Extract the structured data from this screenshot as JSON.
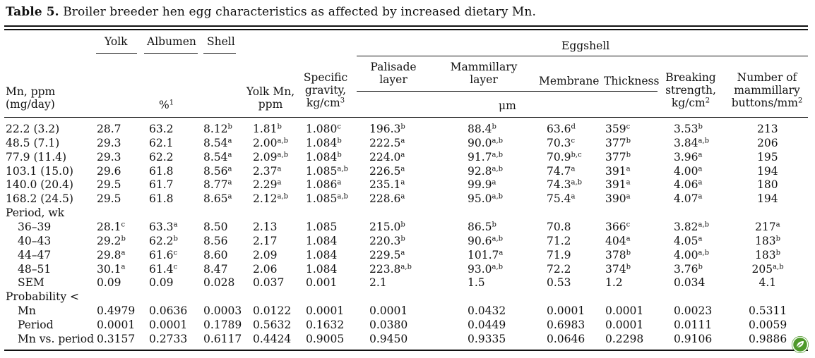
{
  "caption": {
    "label": "Table 5.",
    "text": "Broiler breeder hen egg characteristics as affected by increased dietary Mn."
  },
  "headers": {
    "yolk": "Yolk",
    "albumen": "Albumen",
    "shell": "Shell",
    "eggshell": "Eggshell",
    "mn_ppm": [
      "Mn, ppm",
      "(mg/day)"
    ],
    "percent": "%",
    "percent_sup": "1",
    "yolk_mn": [
      "Yolk Mn,",
      "ppm"
    ],
    "specific_gravity": [
      "Specific",
      "gravity,",
      "kg/cm"
    ],
    "specific_gravity_sup": "3",
    "palisade": [
      "Palisade",
      "layer"
    ],
    "mammillary": [
      "Mammillary",
      "layer"
    ],
    "membrane": "Membrane",
    "thickness": "Thickness",
    "um": "μm",
    "breaking": [
      "Breaking",
      "strength,",
      "kg/cm"
    ],
    "breaking_sup": "2",
    "buttons": [
      "Number of",
      "mammillary",
      "buttons/mm"
    ],
    "buttons_sup": "2"
  },
  "chart_data": {
    "type": "table",
    "title": "Broiler breeder hen egg characteristics as affected by increased dietary Mn.",
    "columns": [
      "Mn, ppm (mg/day)",
      "Yolk",
      "Albumen",
      "Shell",
      "Yolk Mn, ppm",
      "Specific gravity, kg/cm3",
      "Palisade layer",
      "Mammillary layer",
      "Membrane",
      "Thickness",
      "Breaking strength, kg/cm2",
      "Number of mammillary buttons/mm2"
    ],
    "rows": [
      {
        "label": "22.2 (3.2)",
        "indent": false,
        "cells": [
          [
            "28.7",
            ""
          ],
          [
            "63.2",
            ""
          ],
          [
            "8.12",
            "b"
          ],
          [
            "1.81",
            "b"
          ],
          [
            "1.080",
            "c"
          ],
          [
            "196.3",
            "b"
          ],
          [
            "88.4",
            "b"
          ],
          [
            "63.6",
            "d"
          ],
          [
            "359",
            "c"
          ],
          [
            "3.53",
            "b"
          ],
          [
            "213",
            ""
          ]
        ]
      },
      {
        "label": "48.5 (7.1)",
        "indent": false,
        "cells": [
          [
            "29.3",
            ""
          ],
          [
            "62.1",
            ""
          ],
          [
            "8.54",
            "a"
          ],
          [
            "2.00",
            "a,b"
          ],
          [
            "1.084",
            "b"
          ],
          [
            "222.5",
            "a"
          ],
          [
            "90.0",
            "a,b"
          ],
          [
            "70.3",
            "c"
          ],
          [
            "377",
            "b"
          ],
          [
            "3.84",
            "a,b"
          ],
          [
            "206",
            ""
          ]
        ]
      },
      {
        "label": "77.9 (11.4)",
        "indent": false,
        "cells": [
          [
            "29.3",
            ""
          ],
          [
            "62.2",
            ""
          ],
          [
            "8.54",
            "a"
          ],
          [
            "2.09",
            "a,b"
          ],
          [
            "1.084",
            "b"
          ],
          [
            "224.0",
            "a"
          ],
          [
            "91.7",
            "a,b"
          ],
          [
            "70.9",
            "b,c"
          ],
          [
            "377",
            "b"
          ],
          [
            "3.96",
            "a"
          ],
          [
            "195",
            ""
          ]
        ]
      },
      {
        "label": "103.1 (15.0)",
        "indent": false,
        "cells": [
          [
            "29.6",
            ""
          ],
          [
            "61.8",
            ""
          ],
          [
            "8.56",
            "a"
          ],
          [
            "2.37",
            "a"
          ],
          [
            "1.085",
            "a,b"
          ],
          [
            "226.5",
            "a"
          ],
          [
            "92.8",
            "a,b"
          ],
          [
            "74.7",
            "a"
          ],
          [
            "391",
            "a"
          ],
          [
            "4.00",
            "a"
          ],
          [
            "194",
            ""
          ]
        ]
      },
      {
        "label": "140.0 (20.4)",
        "indent": false,
        "cells": [
          [
            "29.5",
            ""
          ],
          [
            "61.7",
            ""
          ],
          [
            "8.77",
            "a"
          ],
          [
            "2.29",
            "a"
          ],
          [
            "1.086",
            "a"
          ],
          [
            "235.1",
            "a"
          ],
          [
            "99.9",
            "a"
          ],
          [
            "74.3",
            "a,b"
          ],
          [
            "391",
            "a"
          ],
          [
            "4.06",
            "a"
          ],
          [
            "180",
            ""
          ]
        ]
      },
      {
        "label": "168.2 (24.5)",
        "indent": false,
        "cells": [
          [
            "29.5",
            ""
          ],
          [
            "61.8",
            ""
          ],
          [
            "8.65",
            "a"
          ],
          [
            "2.12",
            "a,b"
          ],
          [
            "1.085",
            "a,b"
          ],
          [
            "228.6",
            "a"
          ],
          [
            "95.0",
            "a,b"
          ],
          [
            "75.4",
            "a"
          ],
          [
            "390",
            "a"
          ],
          [
            "4.07",
            "a"
          ],
          [
            "194",
            ""
          ]
        ]
      },
      {
        "label": "Period, wk",
        "indent": false,
        "cells": []
      },
      {
        "label": "36–39",
        "indent": true,
        "cells": [
          [
            "28.1",
            "c"
          ],
          [
            "63.3",
            "a"
          ],
          [
            "8.50",
            ""
          ],
          [
            "2.13",
            ""
          ],
          [
            "1.085",
            ""
          ],
          [
            "215.0",
            "b"
          ],
          [
            "86.5",
            "b"
          ],
          [
            "70.8",
            ""
          ],
          [
            "366",
            "c"
          ],
          [
            "3.82",
            "a,b"
          ],
          [
            "217",
            "a"
          ]
        ]
      },
      {
        "label": "40–43",
        "indent": true,
        "cells": [
          [
            "29.2",
            "b"
          ],
          [
            "62.2",
            "b"
          ],
          [
            "8.56",
            ""
          ],
          [
            "2.17",
            ""
          ],
          [
            "1.084",
            ""
          ],
          [
            "220.3",
            "b"
          ],
          [
            "90.6",
            "a,b"
          ],
          [
            "71.2",
            ""
          ],
          [
            "404",
            "a"
          ],
          [
            "4.05",
            "a"
          ],
          [
            "183",
            "b"
          ]
        ]
      },
      {
        "label": "44–47",
        "indent": true,
        "cells": [
          [
            "29.8",
            "a"
          ],
          [
            "61.6",
            "c"
          ],
          [
            "8.60",
            ""
          ],
          [
            "2.09",
            ""
          ],
          [
            "1.084",
            ""
          ],
          [
            "229.5",
            "a"
          ],
          [
            "101.7",
            "a"
          ],
          [
            "71.9",
            ""
          ],
          [
            "378",
            "b"
          ],
          [
            "4.00",
            "a,b"
          ],
          [
            "183",
            "b"
          ]
        ]
      },
      {
        "label": "48–51",
        "indent": true,
        "cells": [
          [
            "30.1",
            "a"
          ],
          [
            "61.4",
            "c"
          ],
          [
            "8.47",
            ""
          ],
          [
            "2.06",
            ""
          ],
          [
            "1.084",
            ""
          ],
          [
            "223.8",
            "a,b"
          ],
          [
            "93.0",
            "a,b"
          ],
          [
            "72.2",
            ""
          ],
          [
            "374",
            "b"
          ],
          [
            "3.76",
            "b"
          ],
          [
            "205",
            "a,b"
          ]
        ]
      },
      {
        "label": "SEM",
        "indent": true,
        "cells": [
          [
            "0.09",
            ""
          ],
          [
            "0.09",
            ""
          ],
          [
            "0.028",
            ""
          ],
          [
            "0.037",
            ""
          ],
          [
            "0.001",
            ""
          ],
          [
            "2.1",
            ""
          ],
          [
            "1.5",
            ""
          ],
          [
            "0.53",
            ""
          ],
          [
            "1.2",
            ""
          ],
          [
            "0.034",
            ""
          ],
          [
            "4.1",
            ""
          ]
        ]
      },
      {
        "label": "Probability <",
        "indent": false,
        "cells": []
      },
      {
        "label": "Mn",
        "indent": true,
        "cells": [
          [
            "0.4979",
            ""
          ],
          [
            "0.0636",
            ""
          ],
          [
            "0.0003",
            ""
          ],
          [
            "0.0122",
            ""
          ],
          [
            "0.0001",
            ""
          ],
          [
            "0.0001",
            ""
          ],
          [
            "0.0432",
            ""
          ],
          [
            "0.0001",
            ""
          ],
          [
            "0.0001",
            ""
          ],
          [
            "0.0023",
            ""
          ],
          [
            "0.5311",
            ""
          ]
        ]
      },
      {
        "label": "Period",
        "indent": true,
        "cells": [
          [
            "0.0001",
            ""
          ],
          [
            "0.0001",
            ""
          ],
          [
            "0.1789",
            ""
          ],
          [
            "0.5632",
            ""
          ],
          [
            "0.1632",
            ""
          ],
          [
            "0.0380",
            ""
          ],
          [
            "0.0449",
            ""
          ],
          [
            "0.6983",
            ""
          ],
          [
            "0.0001",
            ""
          ],
          [
            "0.0111",
            ""
          ],
          [
            "0.0059",
            ""
          ]
        ]
      },
      {
        "label": "Mn vs. period",
        "indent": true,
        "cells": [
          [
            "0.3157",
            ""
          ],
          [
            "0.2733",
            ""
          ],
          [
            "0.6117",
            ""
          ],
          [
            "0.4424",
            ""
          ],
          [
            "0.9005",
            ""
          ],
          [
            "0.9450",
            ""
          ],
          [
            "0.9335",
            ""
          ],
          [
            "0.0646",
            ""
          ],
          [
            "0.2298",
            ""
          ],
          [
            "0.9106",
            ""
          ],
          [
            "0.9886",
            ""
          ]
        ]
      }
    ]
  }
}
